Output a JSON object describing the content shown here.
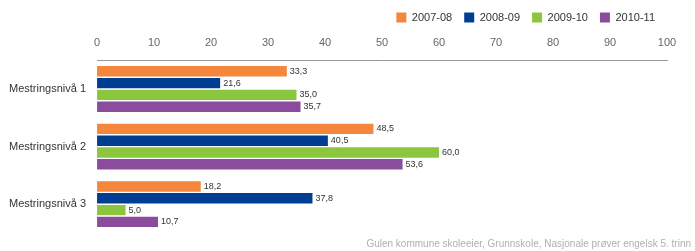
{
  "chart_data": {
    "type": "bar",
    "orientation": "horizontal",
    "categories": [
      "Mestringsnivå 1",
      "Mestringsnivå 2",
      "Mestringsnivå 3"
    ],
    "series": [
      {
        "name": "2007-08",
        "color": "#f5873c",
        "values": [
          33.3,
          48.5,
          18.2
        ],
        "value_labels": [
          "33,3",
          "48,5",
          "18,2"
        ]
      },
      {
        "name": "2008-09",
        "color": "#003e92",
        "values": [
          21.6,
          40.5,
          37.8
        ],
        "value_labels": [
          "21,6",
          "40,5",
          "37,8"
        ]
      },
      {
        "name": "2009-10",
        "color": "#8cc63e",
        "values": [
          35.0,
          60.0,
          5.0
        ],
        "value_labels": [
          "35,0",
          "60,0",
          "5,0"
        ]
      },
      {
        "name": "2010-11",
        "color": "#8b4c9e",
        "values": [
          35.7,
          53.6,
          10.7
        ],
        "value_labels": [
          "35,7",
          "53,6",
          "10,7"
        ]
      }
    ],
    "xlim": [
      0,
      100
    ],
    "xticks": [
      0,
      10,
      20,
      30,
      40,
      50,
      60,
      70,
      80,
      90,
      100
    ],
    "grid": false,
    "legend": "top-right",
    "data_labels": true,
    "annotations": [
      "Gulen kommune skoleeier, Grunnskole, Nasjonale prøver engelsk 5. trinn"
    ]
  }
}
